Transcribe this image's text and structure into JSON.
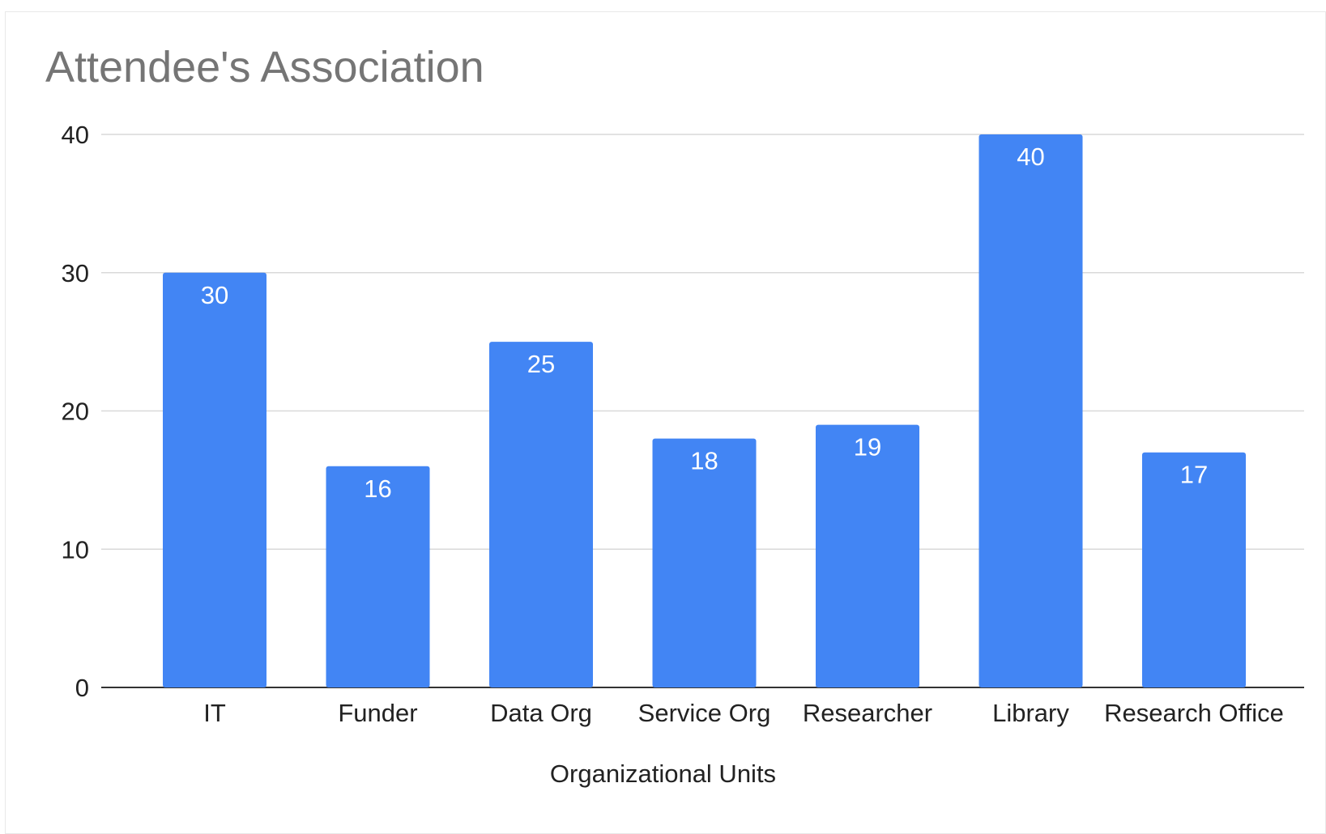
{
  "chart_data": {
    "type": "bar",
    "title": "Attendee's Association",
    "xlabel": "Organizational Units",
    "ylabel": "",
    "categories": [
      "IT",
      "Funder",
      "Data Org",
      "Service Org",
      "Researcher",
      "Library",
      "Research Office"
    ],
    "values": [
      30,
      16,
      25,
      18,
      19,
      40,
      17
    ],
    "ylim": [
      0,
      40
    ],
    "yticks": [
      "0",
      "10",
      "20",
      "30",
      "40"
    ],
    "grid": true,
    "data_labels": true,
    "colors": {
      "bar": "#4285f4",
      "grid": "#d9d9d9",
      "axis": "#333333"
    }
  }
}
